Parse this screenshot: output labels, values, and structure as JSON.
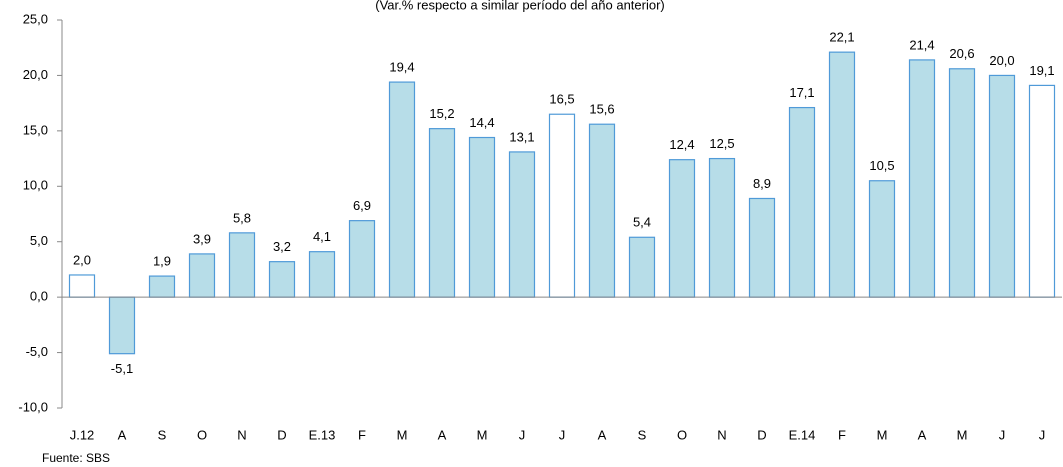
{
  "chart_data": {
    "type": "bar",
    "subtitle": "(Var.% respecto a similar período del año anterior)",
    "categories": [
      "J.12",
      "A",
      "S",
      "O",
      "N",
      "D",
      "E.13",
      "F",
      "M",
      "A",
      "M",
      "J",
      "J",
      "A",
      "S",
      "O",
      "N",
      "D",
      "E.14",
      "F",
      "M",
      "A",
      "M",
      "J",
      "J"
    ],
    "values": [
      2.0,
      -5.1,
      1.9,
      3.9,
      5.8,
      3.2,
      4.1,
      6.9,
      19.4,
      15.2,
      14.4,
      13.1,
      16.5,
      15.6,
      5.4,
      12.4,
      12.5,
      8.9,
      17.1,
      22.1,
      10.5,
      21.4,
      20.6,
      20.0,
      19.1
    ],
    "value_labels": [
      "2,0",
      "-5,1",
      "1,9",
      "3,9",
      "5,8",
      "3,2",
      "4,1",
      "6,9",
      "19,4",
      "15,2",
      "14,4",
      "13,1",
      "16,5",
      "15,6",
      "5,4",
      "12,4",
      "12,5",
      "8,9",
      "17,1",
      "22,1",
      "10,5",
      "21,4",
      "20,6",
      "20,0",
      "19,1"
    ],
    "colors": [
      "#ffffff",
      "#b7dde8",
      "#b7dde8",
      "#b7dde8",
      "#b7dde8",
      "#b7dde8",
      "#b7dde8",
      "#b7dde8",
      "#b7dde8",
      "#b7dde8",
      "#b7dde8",
      "#b7dde8",
      "#ffffff",
      "#b7dde8",
      "#b7dde8",
      "#b7dde8",
      "#b7dde8",
      "#b7dde8",
      "#b7dde8",
      "#b7dde8",
      "#b7dde8",
      "#b7dde8",
      "#b7dde8",
      "#b7dde8",
      "#ffffff"
    ],
    "ylim": [
      -10,
      25
    ],
    "yticks": [
      {
        "value": -10,
        "label": "-10,0"
      },
      {
        "value": -5,
        "label": "-5,0"
      },
      {
        "value": 0,
        "label": "0,0"
      },
      {
        "value": 5,
        "label": "5,0"
      },
      {
        "value": 10,
        "label": "10,0"
      },
      {
        "value": 15,
        "label": "15,0"
      },
      {
        "value": 20,
        "label": "20,0"
      },
      {
        "value": 25,
        "label": "25,0"
      }
    ],
    "grid": false,
    "source": "Fuente: SBS"
  }
}
